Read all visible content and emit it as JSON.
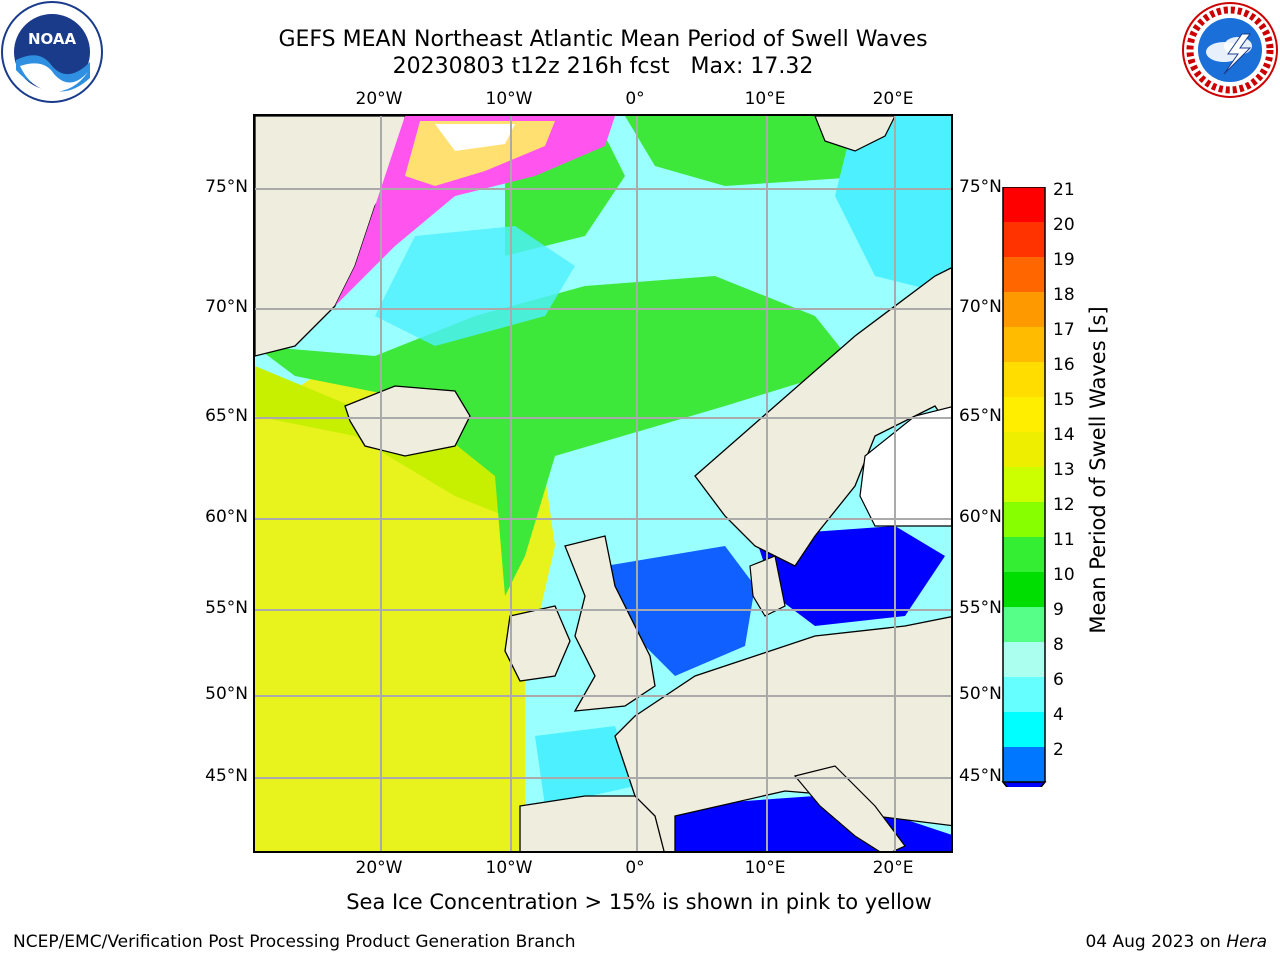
{
  "header": {
    "title_line1": "GEFS MEAN Northeast Atlantic Mean Period of Swell Waves",
    "title_line2": "20230803 t12z 216h fcst   Max: 17.32"
  },
  "logos": {
    "left": "NOAA",
    "right": "NATIONAL WEATHER SERVICE"
  },
  "map": {
    "lon_labels": [
      "20°W",
      "10°W",
      "0°",
      "10°E",
      "20°E"
    ],
    "lon_labels_top": [
      "20°W",
      "10°W",
      "0°",
      "10°E",
      "20°E"
    ],
    "lat_labels": [
      "75°N",
      "70°N",
      "65°N",
      "60°N",
      "55°N",
      "50°N",
      "45°N"
    ],
    "colors": {
      "land": "#efedde",
      "ocean_light": "#9affff",
      "ocean_cyan": "#4cf0ff",
      "ocean_blue": "#1060ff",
      "ocean_green": "#3ee83a",
      "ocean_yellowgreen": "#c6f000",
      "ocean_yellow": "#e8f21c",
      "ice_pink": "#ff55ee",
      "ice_yellow": "#ffe070",
      "grid": "#aaaaaa"
    }
  },
  "colorbar": {
    "title": "Mean Period of Swell Waves [s]",
    "levels": [
      "21",
      "20",
      "19",
      "18",
      "17",
      "16",
      "15",
      "14",
      "13",
      "12",
      "11",
      "10",
      "9",
      "8",
      "6",
      "4",
      "2"
    ],
    "colors": [
      "#ff0000",
      "#ff3300",
      "#ff6600",
      "#ff9900",
      "#ffbb00",
      "#ffdd00",
      "#ffee00",
      "#eeee00",
      "#ccff00",
      "#88ff00",
      "#33ee33",
      "#00dd00",
      "#55ff88",
      "#aaffee",
      "#66ffff",
      "#00ffff",
      "#0077ff"
    ],
    "under_color": "#0000ff"
  },
  "caption": "Sea Ice Concentration > 15% is shown in pink to yellow",
  "footer": {
    "left": "NCEP/EMC/Verification Post Processing Product Generation Branch",
    "right_date": "04 Aug 2023 on ",
    "right_host": "Hera"
  }
}
